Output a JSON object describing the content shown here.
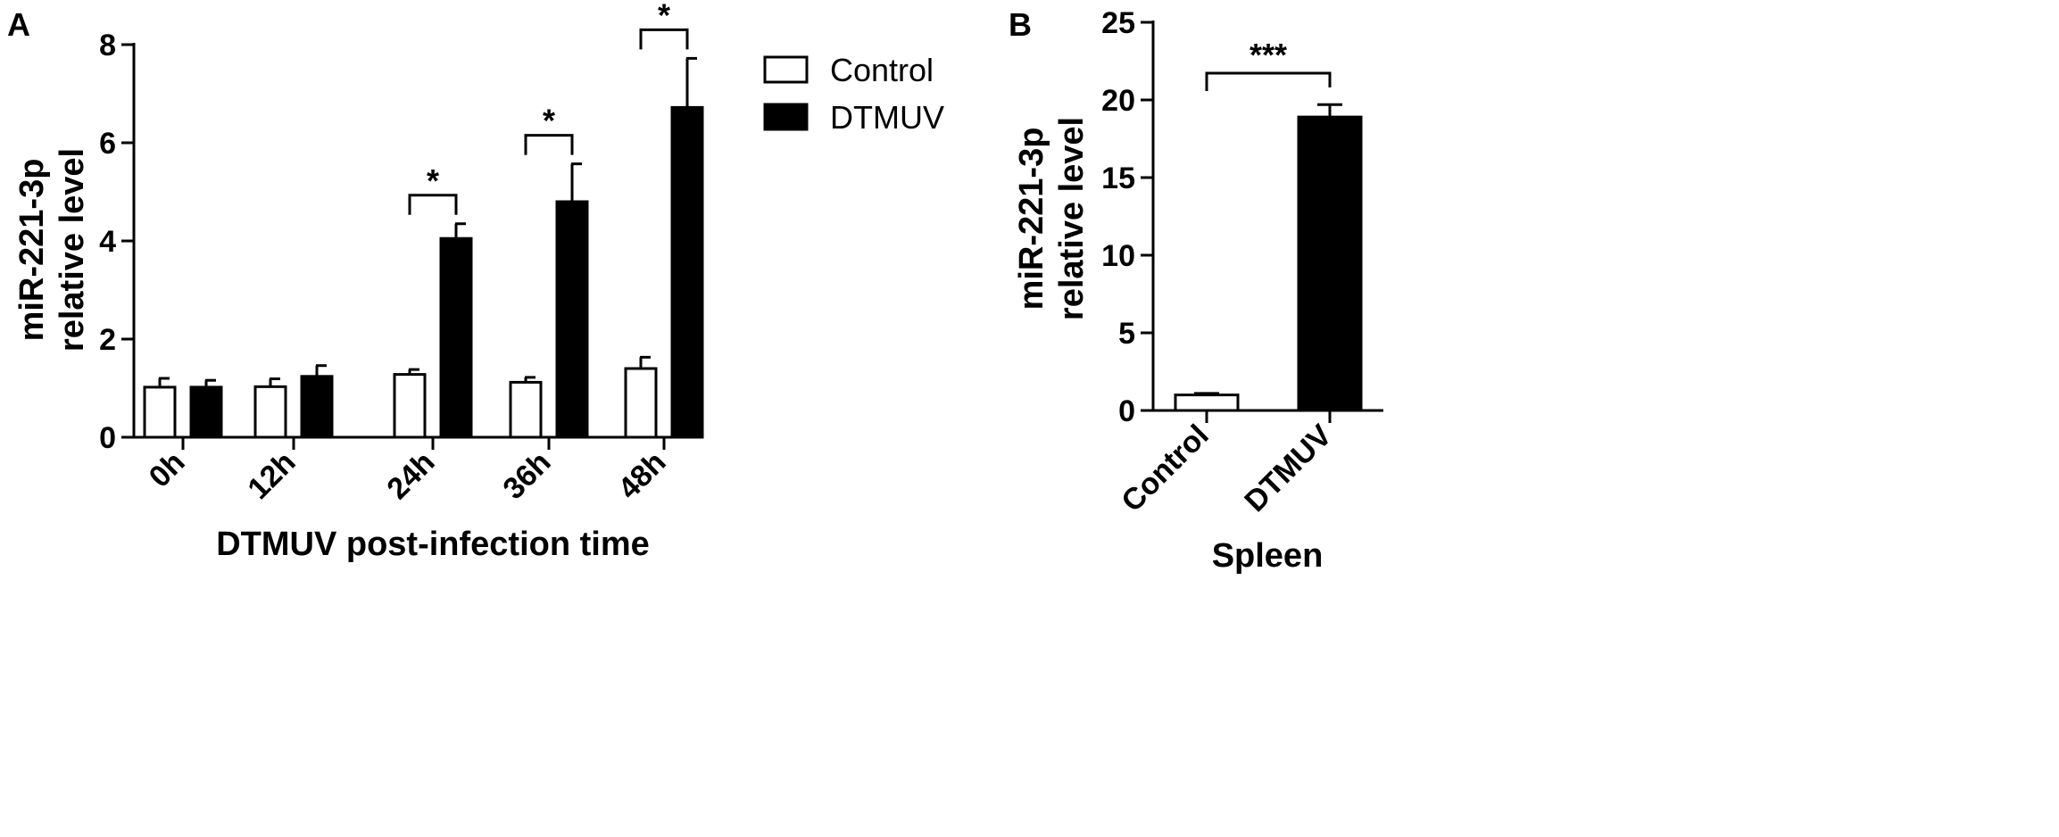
{
  "chart_data": [
    {
      "panel_label": "A",
      "type": "bar",
      "categories": [
        "0h",
        "12h",
        "24h",
        "36h",
        "48h"
      ],
      "series": [
        {
          "name": "Control",
          "values": [
            1.02,
            1.03,
            1.28,
            1.12,
            1.4
          ],
          "errors": [
            0.18,
            0.16,
            0.1,
            0.1,
            0.23
          ],
          "fill": "#ffffff"
        },
        {
          "name": "DTMUV",
          "values": [
            1.02,
            1.24,
            4.05,
            4.8,
            6.72
          ],
          "errors": [
            0.14,
            0.22,
            0.3,
            0.77,
            1.0
          ],
          "fill": "#000000"
        }
      ],
      "xlabel": "DTMUV post-infection time",
      "ylabel": [
        "miR-221-3p",
        "relative level"
      ],
      "ylim": [
        0,
        8
      ],
      "yticks": [
        0,
        2,
        4,
        6,
        8
      ],
      "ytick_labels": [
        "0",
        "2",
        "4",
        "6",
        "8"
      ],
      "significance": [
        {
          "category": "24h",
          "label": "*"
        },
        {
          "category": "36h",
          "label": "*"
        },
        {
          "category": "48h",
          "label": "*"
        }
      ],
      "legend": {
        "position": "top-right",
        "entries": [
          "Control",
          "DTMUV"
        ]
      },
      "grid": false
    },
    {
      "panel_label": "B",
      "type": "bar",
      "categories": [
        "Control",
        "DTMUV"
      ],
      "series": [
        {
          "values": [
            1.0,
            18.9
          ],
          "errors": [
            0.1,
            0.8
          ],
          "fills": [
            "#ffffff",
            "#000000"
          ]
        }
      ],
      "xlabel": "Spleen",
      "ylabel": [
        "miR-221-3p",
        "relative level"
      ],
      "ylim": [
        0,
        25
      ],
      "yticks": [
        0,
        5,
        10,
        15,
        20,
        25
      ],
      "ytick_labels": [
        "0",
        "5",
        "10",
        "15",
        "20",
        "25"
      ],
      "significance": [
        {
          "from": "Control",
          "to": "DTMUV",
          "label": "***"
        }
      ],
      "grid": false
    }
  ]
}
